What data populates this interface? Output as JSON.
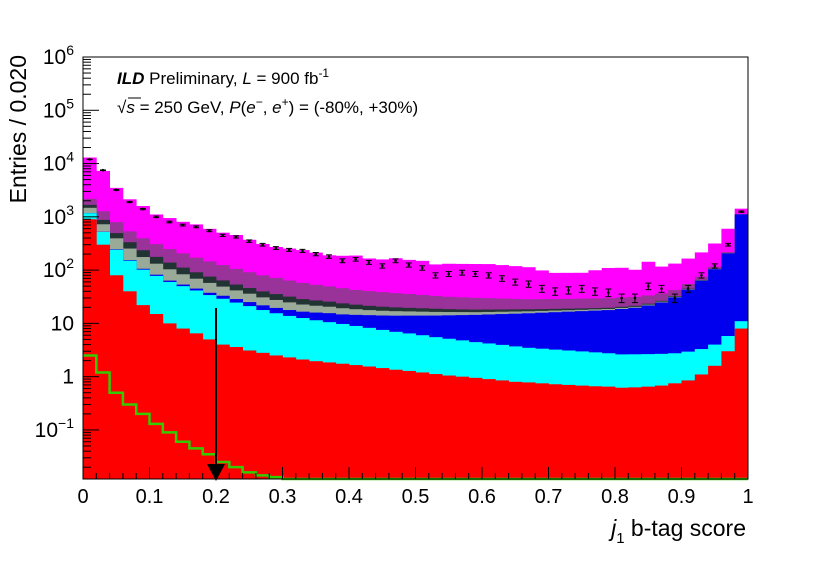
{
  "chart_data": {
    "type": "histogram",
    "stacked": true,
    "log_y": true,
    "xlabel": {
      "var": "j",
      "sub": "1",
      "text": " b-tag score"
    },
    "ylabel": "Entries / 0.020",
    "xlim": [
      0,
      1
    ],
    "ylim": [
      0.012,
      1000000
    ],
    "bin_width": 0.02,
    "x_ticks": [
      "0",
      "0.1",
      "0.2",
      "0.3",
      "0.4",
      "0.5",
      "0.6",
      "0.7",
      "0.8",
      "0.9",
      "1"
    ],
    "y_ticks": [
      {
        "value": 0.1,
        "base": "10",
        "exp": "−1"
      },
      {
        "value": 1,
        "base": "1",
        "exp": ""
      },
      {
        "value": 10,
        "base": "10",
        "exp": ""
      },
      {
        "value": 100,
        "base": "10",
        "exp": "2"
      },
      {
        "value": 1000,
        "base": "10",
        "exp": "3"
      },
      {
        "value": 10000,
        "base": "10",
        "exp": "4"
      },
      {
        "value": 100000,
        "base": "10",
        "exp": "5"
      },
      {
        "value": 1000000,
        "base": "10",
        "exp": "6"
      }
    ],
    "annotation": {
      "line1": {
        "bold": "ILD",
        "pre": " Preliminary, ",
        "L": "L",
        "mid": " = 900 fb",
        "exp": "-1"
      },
      "line2": {
        "sqrt": "√",
        "s": "s",
        "text": " = 250 GeV, ",
        "P": "P",
        "open": "(",
        "em": "e",
        "emsup": "−",
        "comma": ", ",
        "ep": "e",
        "epsup": "+",
        "close": ") = (-80%, +30%)"
      }
    },
    "cut": {
      "x": 0.2,
      "style": "arrow-down"
    },
    "colors": {
      "red": "#ff0000",
      "cyan": "#00ffff",
      "blue": "#0000ee",
      "gray": "#99aa99",
      "dark": "#223333",
      "purple": "#993399",
      "magenta": "#ff00ff",
      "green": "#33cc00"
    },
    "stack_order": [
      "red",
      "cyan",
      "blue",
      "gray",
      "dark",
      "purple",
      "magenta"
    ],
    "bins_x": [
      0.0,
      0.02,
      0.04,
      0.06,
      0.08,
      0.1,
      0.12,
      0.14,
      0.16,
      0.18,
      0.2,
      0.22,
      0.24,
      0.26,
      0.28,
      0.3,
      0.32,
      0.34,
      0.36,
      0.38,
      0.4,
      0.42,
      0.44,
      0.46,
      0.48,
      0.5,
      0.52,
      0.54,
      0.56,
      0.58,
      0.6,
      0.62,
      0.64,
      0.66,
      0.68,
      0.7,
      0.72,
      0.74,
      0.76,
      0.78,
      0.8,
      0.82,
      0.84,
      0.86,
      0.88,
      0.9,
      0.92,
      0.94,
      0.96,
      0.98
    ],
    "series": [
      {
        "color": "red",
        "values": [
          900,
          300,
          80,
          40,
          22,
          15,
          10,
          8,
          6.5,
          5,
          4,
          3.6,
          3.1,
          2.8,
          2.5,
          2.3,
          2.1,
          1.95,
          1.85,
          1.75,
          1.65,
          1.55,
          1.45,
          1.35,
          1.28,
          1.2,
          1.12,
          1.05,
          1.0,
          0.95,
          0.9,
          0.85,
          0.8,
          0.78,
          0.75,
          0.72,
          0.7,
          0.68,
          0.66,
          0.65,
          0.62,
          0.63,
          0.65,
          0.68,
          0.75,
          0.85,
          1.1,
          1.6,
          3,
          8
        ]
      },
      {
        "color": "cyan",
        "values": [
          270,
          220,
          160,
          110,
          80,
          63,
          50,
          42,
          35,
          29,
          25,
          21,
          18,
          15,
          13,
          11.5,
          10.5,
          9.5,
          8.7,
          8,
          7.3,
          6.7,
          6.1,
          5.6,
          5.2,
          4.8,
          4.4,
          4.1,
          3.8,
          3.5,
          3.3,
          3.1,
          2.9,
          2.7,
          2.6,
          2.5,
          2.4,
          2.3,
          2.2,
          2.1,
          2.0,
          2.0,
          2.0,
          2.0,
          2.0,
          2.1,
          2.2,
          2.4,
          2.8,
          3
        ]
      },
      {
        "color": "blue",
        "values": [
          6,
          5,
          5,
          4,
          4,
          4,
          3.5,
          3.5,
          3.5,
          3.5,
          4,
          4,
          4,
          4,
          4,
          4,
          4,
          4.5,
          5,
          5,
          5.5,
          6,
          6.5,
          7,
          7.5,
          8,
          8.5,
          9,
          9.5,
          10,
          10.5,
          11,
          11.5,
          12,
          12.5,
          13,
          13.5,
          14,
          14.5,
          15,
          16,
          17,
          19,
          22,
          28,
          40,
          60,
          100,
          200,
          1100
        ]
      },
      {
        "color": "gray",
        "values": [
          300,
          200,
          150,
          100,
          70,
          50,
          40,
          30,
          24,
          20,
          16,
          13,
          11,
          9,
          8,
          7,
          6,
          5.5,
          5,
          4.5,
          4,
          3.5,
          3.2,
          3,
          2.8,
          2.6,
          2.4,
          2.2,
          2,
          1.8,
          1.7,
          1.6,
          1.5,
          1.4,
          1.3,
          1.2,
          1.1,
          1.0,
          1.0,
          0.9,
          0.9,
          0.8,
          0.8,
          0.8,
          0.8,
          0.8,
          0.8,
          0.8,
          0.8,
          0.8
        ]
      },
      {
        "color": "dark",
        "values": [
          200,
          150,
          100,
          80,
          60,
          45,
          35,
          28,
          22,
          18,
          15,
          12,
          10,
          9,
          8,
          7,
          6,
          5.5,
          5,
          4.5,
          4,
          3.6,
          3.3,
          3,
          2.8,
          2.6,
          2.4,
          2.2,
          2,
          1.9,
          1.8,
          1.7,
          1.6,
          1.5,
          1.4,
          1.3,
          1.2,
          1.1,
          1.0,
          1.0,
          1.0,
          1.0,
          1.0,
          1.0,
          1.0,
          1.0,
          1.0,
          1.0,
          1.0,
          1.0
        ]
      },
      {
        "color": "purple",
        "values": [
          500,
          400,
          300,
          200,
          160,
          130,
          110,
          95,
          80,
          70,
          60,
          52,
          45,
          40,
          36,
          32,
          29,
          26,
          24,
          22,
          20,
          19,
          18,
          17,
          16,
          15,
          14,
          13,
          12.5,
          12,
          11.5,
          11,
          10.5,
          10,
          10,
          10,
          10,
          10,
          10,
          10,
          10,
          10,
          10,
          10,
          10,
          10,
          10,
          10,
          10,
          10
        ]
      },
      {
        "color": "magenta",
        "values": [
          10800,
          6000,
          2700,
          1600,
          1200,
          800,
          700,
          600,
          550,
          450,
          380,
          350,
          280,
          230,
          200,
          190,
          180,
          160,
          140,
          140,
          145,
          125,
          120,
          130,
          120,
          115,
          95,
          100,
          100,
          100,
          100,
          95,
          90,
          85,
          70,
          60,
          60,
          60,
          70,
          80,
          80,
          70,
          110,
          80,
          90,
          110,
          140,
          200,
          380,
          300
        ]
      }
    ],
    "signal": {
      "color": "green",
      "values": [
        2.5,
        1.2,
        0.5,
        0.3,
        0.2,
        0.13,
        0.09,
        0.06,
        0.045,
        0.035,
        0.025,
        0.02,
        0.016,
        0.014,
        0.013,
        0.012,
        0.012,
        0.012,
        0.012,
        0.012,
        0.012,
        0.012,
        0.012,
        0.012,
        0.012,
        0.012,
        0.012,
        0.012,
        0.012,
        0.012,
        0.012,
        0.012,
        0.012,
        0.012,
        0.012,
        0.012,
        0.012,
        0.012,
        0.012,
        0.012,
        0.012,
        0.012,
        0.012,
        0.012,
        0.012,
        0.012,
        0.012,
        0.012,
        0.012,
        0.012
      ]
    },
    "data_points": {
      "x": [
        0.01,
        0.03,
        0.05,
        0.07,
        0.09,
        0.11,
        0.13,
        0.15,
        0.17,
        0.19,
        0.21,
        0.23,
        0.25,
        0.27,
        0.29,
        0.31,
        0.33,
        0.35,
        0.37,
        0.39,
        0.41,
        0.43,
        0.45,
        0.47,
        0.49,
        0.51,
        0.53,
        0.55,
        0.57,
        0.59,
        0.61,
        0.63,
        0.65,
        0.67,
        0.69,
        0.71,
        0.73,
        0.75,
        0.77,
        0.79,
        0.81,
        0.83,
        0.85,
        0.87,
        0.89,
        0.91,
        0.93,
        0.95,
        0.97,
        0.99
      ],
      "y": [
        12000,
        7500,
        3200,
        1900,
        1400,
        1000,
        800,
        700,
        650,
        550,
        450,
        420,
        350,
        300,
        260,
        240,
        230,
        200,
        180,
        150,
        160,
        140,
        120,
        150,
        125,
        110,
        80,
        85,
        90,
        85,
        80,
        70,
        60,
        55,
        45,
        40,
        42,
        45,
        40,
        38,
        30,
        30,
        50,
        45,
        30,
        45,
        80,
        120,
        300,
        1250
      ]
    }
  }
}
